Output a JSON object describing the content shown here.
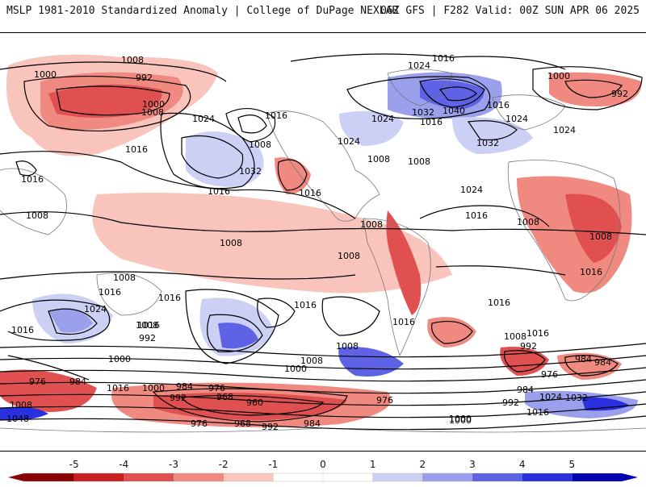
{
  "header": {
    "left_title": "MSLP 1981-2010 Standardized Anomaly | College of DuPage NEXLAB",
    "right_title": "06Z GFS | F282 Valid: 00Z SUN APR 06 2025"
  },
  "colorbar": {
    "ticks": [
      "-5",
      "-4",
      "-3",
      "-2",
      "-1",
      "0",
      "1",
      "2",
      "3",
      "4",
      "5"
    ],
    "colors": [
      "#8b0000",
      "#c81e1e",
      "#e05050",
      "#f08a80",
      "#f8c4bc",
      "#ffffff",
      "#ffffff",
      "#cdd0f5",
      "#9aa0ec",
      "#5e63e6",
      "#2a2fe0",
      "#0000b4"
    ]
  },
  "isobars": {
    "labels": [
      "1008",
      "1000",
      "992",
      "1000",
      "1008",
      "1016",
      "1024",
      "1032",
      "1040",
      "1032",
      "1016",
      "1024",
      "1016",
      "1024",
      "1008",
      "1016",
      "1024",
      "1000",
      "992",
      "1016",
      "1024",
      "1008",
      "1016",
      "1032",
      "1024",
      "1016",
      "1008",
      "1016",
      "1024",
      "1008",
      "1016",
      "1008",
      "1008",
      "1008",
      "1008",
      "1016",
      "1016",
      "1008",
      "1016",
      "1024",
      "1016",
      "1008",
      "1008",
      "992",
      "1000",
      "1016",
      "1008",
      "1000",
      "1008",
      "1016",
      "976",
      "984",
      "976",
      "968",
      "960",
      "976",
      "992",
      "984",
      "968",
      "984",
      "1000",
      "992",
      "1000",
      "976",
      "1016",
      "1008",
      "1048",
      "1016",
      "984",
      "992",
      "984",
      "1024",
      "1032",
      "1016",
      "1016",
      "1008",
      "992",
      "984",
      "976",
      "1000",
      "1016"
    ]
  }
}
